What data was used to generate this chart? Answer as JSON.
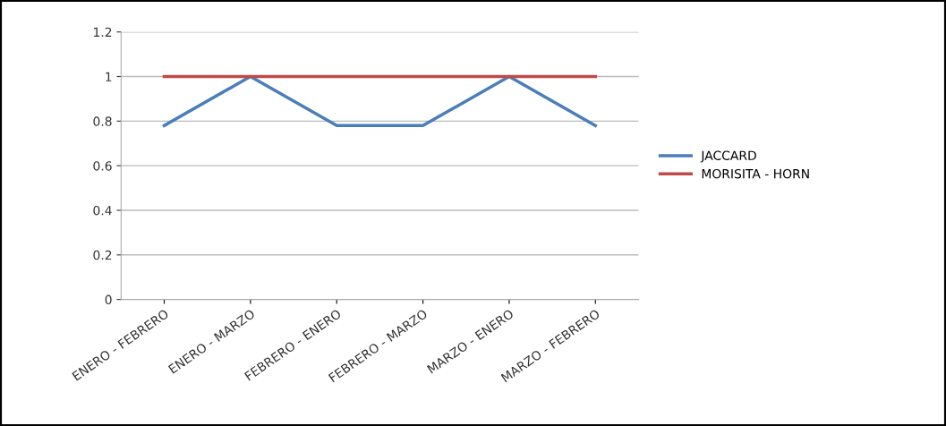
{
  "chart_data": {
    "type": "line",
    "categories": [
      "ENERO - FEBRERO",
      "ENERO - MARZO",
      "FEBRERO - ENERO",
      "FEBRERO - MARZO",
      "MARZO - ENERO",
      "MARZO - FEBRERO"
    ],
    "series": [
      {
        "name": "JACCARD",
        "color": "#4a7ebb",
        "values": [
          0.78,
          1,
          0.78,
          0.78,
          1,
          0.78
        ]
      },
      {
        "name": "MORISITA - HORN",
        "color": "#be4b48",
        "values": [
          1,
          1,
          1,
          1,
          1,
          1
        ]
      }
    ],
    "ylim": [
      0,
      1.2
    ],
    "yticks": [
      0,
      0.2,
      0.4,
      0.6,
      0.8,
      1,
      1.2
    ],
    "grid": "y",
    "legend": "right",
    "marker": "none"
  }
}
